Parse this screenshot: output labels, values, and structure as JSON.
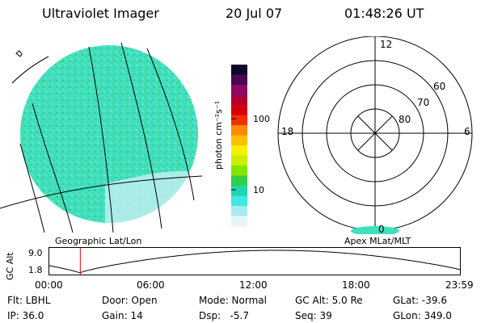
{
  "header": {
    "instrument": "Ultraviolet Imager",
    "date": "20 Jul 07",
    "time": "01:48:26 UT"
  },
  "colorbar": {
    "unit_label": "photon cm⁻²s⁻¹",
    "ticks": [
      "100",
      "10"
    ],
    "colors": [
      "#10042a",
      "#4a0a4f",
      "#8a0a6a",
      "#b0002f",
      "#d6000a",
      "#f03000",
      "#ff8a00",
      "#ffc000",
      "#f7f000",
      "#c8f000",
      "#80e600",
      "#30d048",
      "#20d6b0",
      "#40e8e0",
      "#a8ecf0",
      "#e6f6fa"
    ]
  },
  "polar": {
    "labels": [
      "12",
      "60",
      "70",
      "80",
      "18",
      "6",
      "0"
    ],
    "caption": "Apex MLat/MLT"
  },
  "map": {
    "caption": "Geographic Lat/Lon",
    "fill_color": "#40e0c0"
  },
  "timeline": {
    "axis_title": "GC Alt",
    "y_top": "9.0",
    "y_bottom": "1.8",
    "ticks": [
      "00:00",
      "06:00",
      "12:00",
      "18:00",
      "23:59"
    ],
    "current_time_fraction": 0.0753,
    "marker_color": "#e00000"
  },
  "info": {
    "row1": [
      "Flt: LBHL",
      "Door: Open",
      "Mode: Normal",
      "GC Alt: 5.0 Re",
      "GLat: -39.6"
    ],
    "row2": [
      "IP: 36.0",
      "Gain: 14",
      "Dsp:   -5.7",
      "Seq: 39",
      "GLon: 349.0"
    ]
  }
}
